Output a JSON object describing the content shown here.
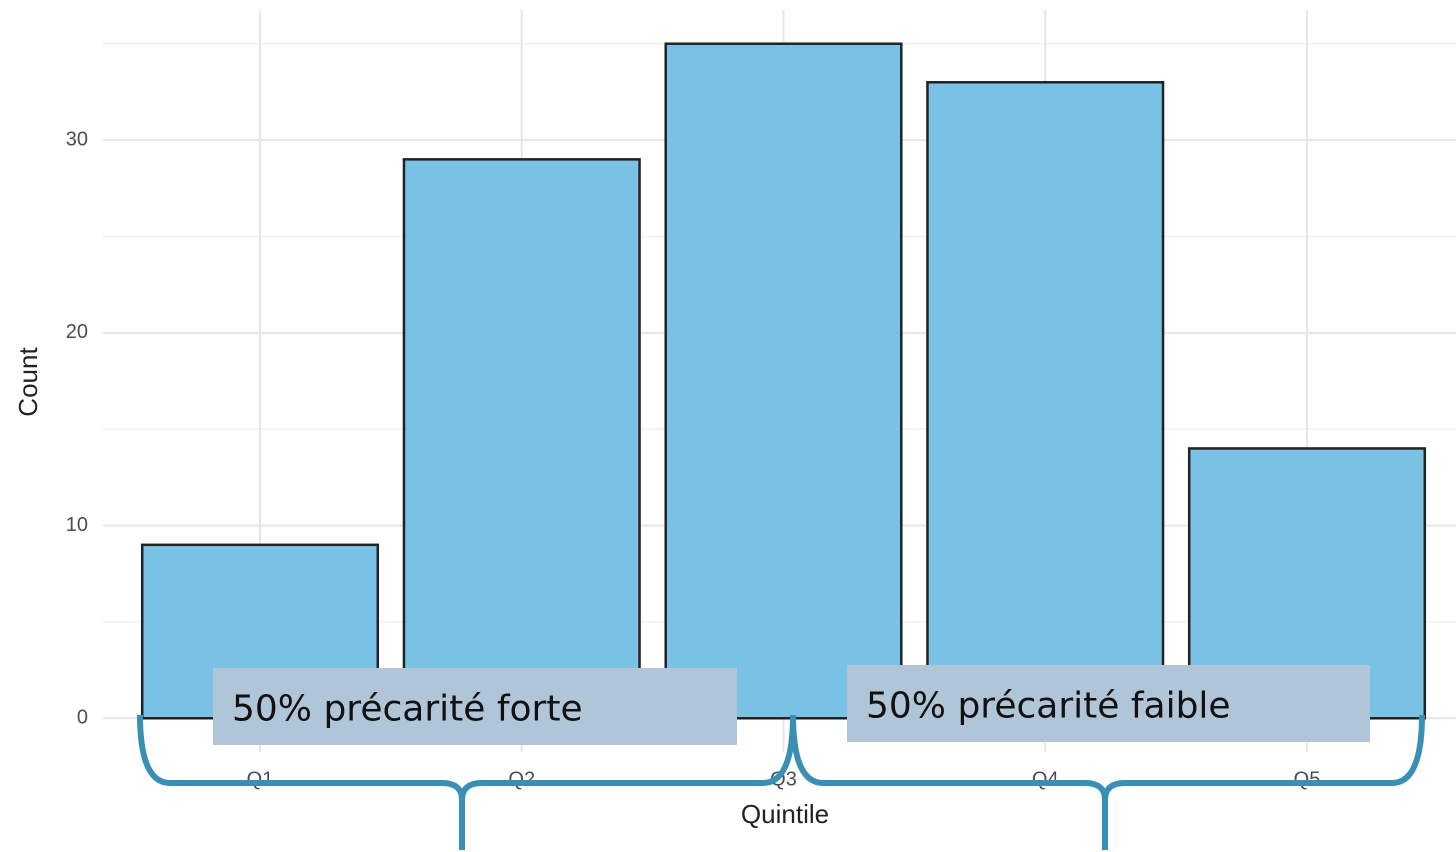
{
  "chart_data": {
    "type": "bar",
    "x_label": "Quintile",
    "y_label": "Count",
    "categories": [
      "Q1",
      "Q2",
      "Q3",
      "Q4",
      "Q5"
    ],
    "values": [
      9,
      29,
      35,
      33,
      14
    ],
    "color": "#79c1e5",
    "ylim": [
      -1.75,
      36.75
    ],
    "yticks": [
      0,
      10,
      20,
      30
    ],
    "grid": true,
    "annotations": [
      "50% précarité forte",
      "50% précarité faible"
    ]
  }
}
